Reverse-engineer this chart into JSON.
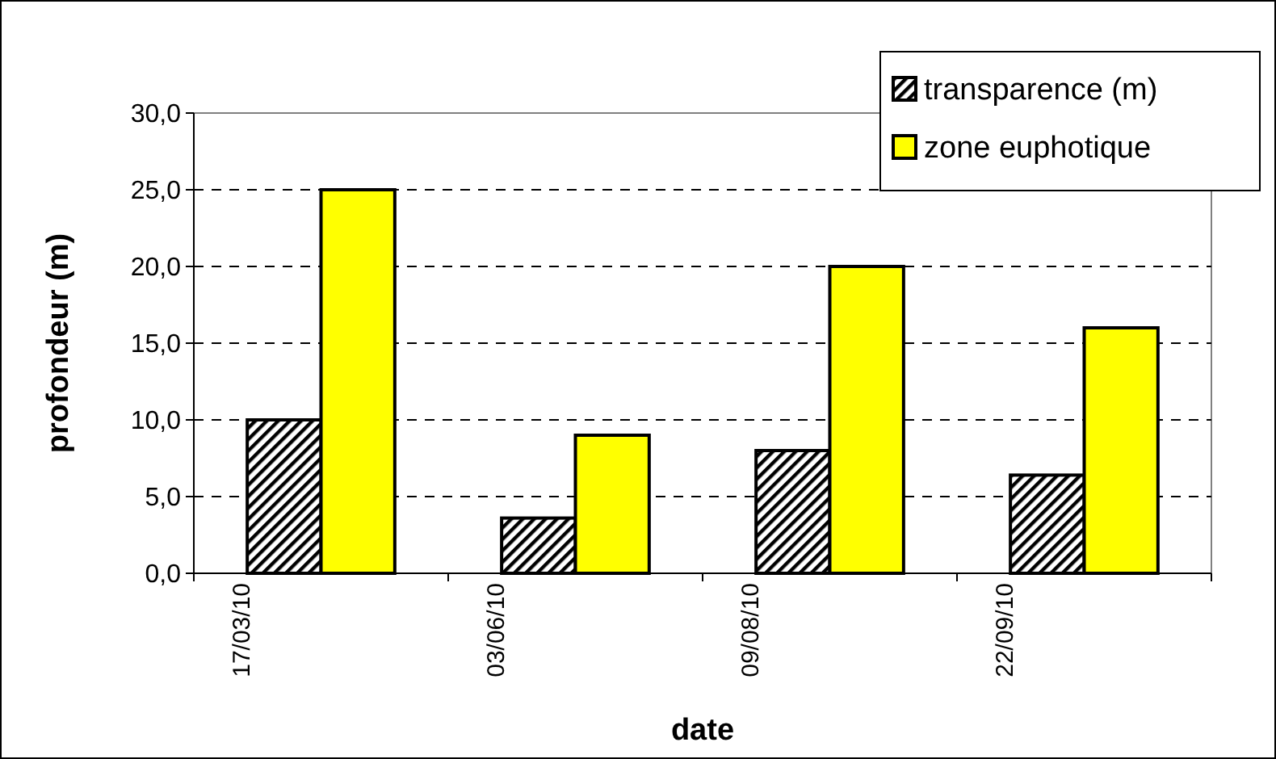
{
  "chart_data": {
    "type": "bar",
    "xlabel": "date",
    "ylabel": "profondeur (m)",
    "categories": [
      "17/03/10",
      "03/06/10",
      "09/08/10",
      "22/09/10"
    ],
    "series": [
      {
        "name": "transparence (m)",
        "color": "#000000",
        "values": [
          10,
          3.6,
          8,
          6.4
        ]
      },
      {
        "name": "zone euphotique",
        "color": "#ffff00",
        "values": [
          25,
          9,
          20,
          16
        ]
      }
    ],
    "ylim": [
      0,
      30
    ],
    "yticks": [
      {
        "value": 0,
        "label": "0,0"
      },
      {
        "value": 5,
        "label": "5,0"
      },
      {
        "value": 10,
        "label": "10,0"
      },
      {
        "value": 15,
        "label": "15,0"
      },
      {
        "value": 20,
        "label": "20,0"
      },
      {
        "value": 25,
        "label": "25,0"
      },
      {
        "value": 30,
        "label": "30,0"
      }
    ],
    "grid": "y",
    "legend": "top right"
  }
}
